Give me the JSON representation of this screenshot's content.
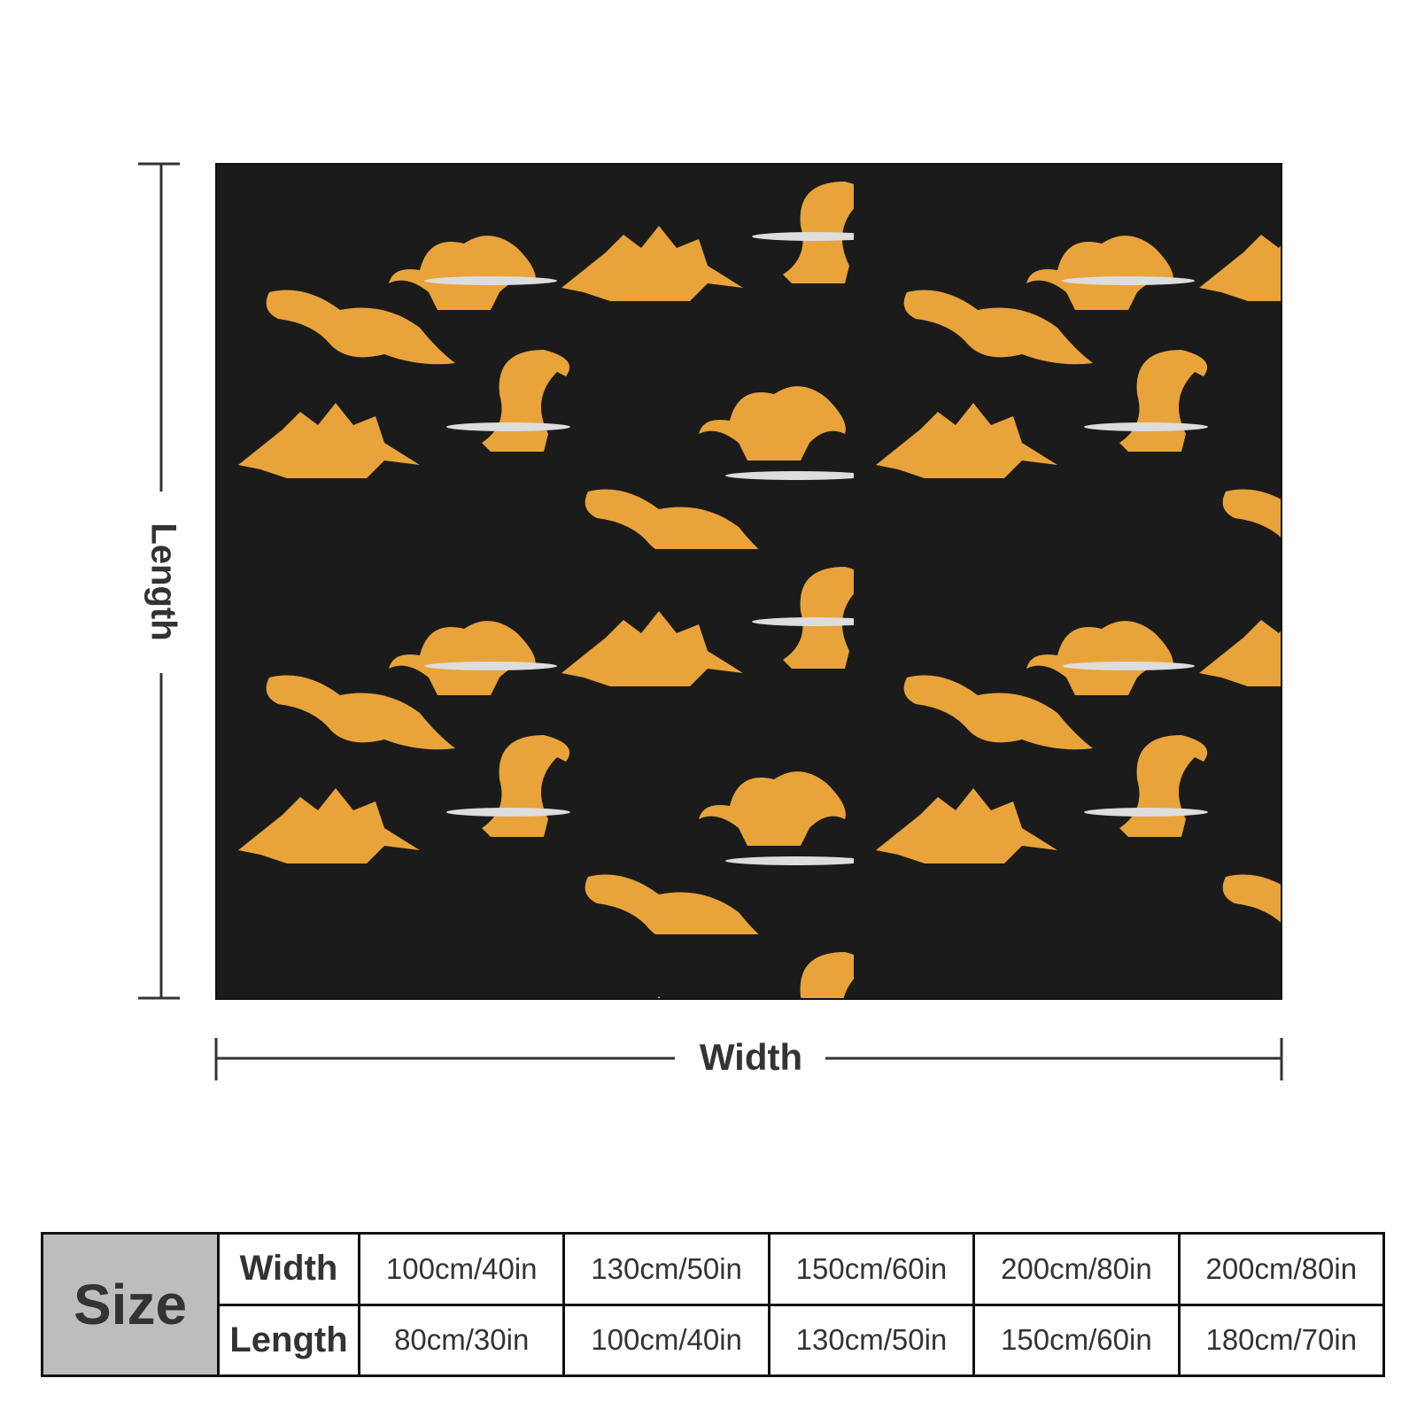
{
  "dimension_labels": {
    "length": "Length",
    "width": "Width"
  },
  "size_table": {
    "header": "Size",
    "rows": [
      [
        "Width",
        "100cm/40in",
        "130cm/50in",
        "150cm/60in",
        "200cm/80in",
        "200cm/80in"
      ],
      [
        "Length",
        "80cm/30in",
        "100cm/40in",
        "130cm/50in",
        "150cm/60in",
        "180cm/70in"
      ]
    ]
  }
}
